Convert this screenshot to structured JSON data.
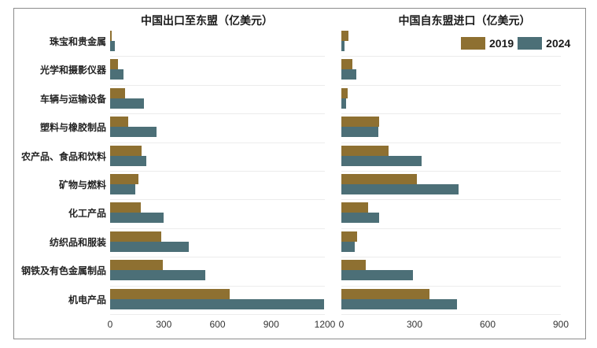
{
  "colors": {
    "y2019": "#8e7031",
    "y2024": "#4c6f77",
    "gridline": "#ececec",
    "frame_border": "#8c8c8c"
  },
  "legend": {
    "position": "top-right-of-right-chart",
    "entries": [
      {
        "label": "2019",
        "color": "#8e7031"
      },
      {
        "label": "2024",
        "color": "#4c6f77"
      }
    ]
  },
  "chart_data": [
    {
      "type": "bar",
      "orientation": "horizontal",
      "title": "中国出口至东盟（亿美元）",
      "categories": [
        "珠宝和贵金属",
        "光学和摄影仪器",
        "车辆与运输设备",
        "塑料与橡胶制品",
        "农产品、食品和饮料",
        "矿物与燃料",
        "化工产品",
        "纺织品和服装",
        "钢铁及有色金属制品",
        "机电产品"
      ],
      "series": [
        {
          "name": "2019",
          "color": "#8e7031",
          "values": [
            10,
            45,
            85,
            100,
            175,
            160,
            170,
            285,
            295,
            670
          ]
        },
        {
          "name": "2024",
          "color": "#4c6f77",
          "values": [
            25,
            75,
            190,
            260,
            200,
            140,
            300,
            440,
            530,
            1195
          ]
        }
      ],
      "xlim": [
        0,
        1200
      ],
      "xticks": [
        0,
        300,
        600,
        900,
        1200
      ],
      "grid": "horizontal-row-separators",
      "legend_shown": false
    },
    {
      "type": "bar",
      "orientation": "horizontal",
      "title": "中国自东盟进口（亿美元）",
      "categories": [
        "珠宝和贵金属",
        "光学和摄影仪器",
        "车辆与运输设备",
        "塑料与橡胶制品",
        "农产品、食品和饮料",
        "矿物与燃料",
        "化工产品",
        "纺织品和服装",
        "钢铁及有色金属制品",
        "机电产品"
      ],
      "series": [
        {
          "name": "2019",
          "color": "#8e7031",
          "values": [
            30,
            45,
            25,
            155,
            195,
            310,
            110,
            65,
            100,
            360
          ]
        },
        {
          "name": "2024",
          "color": "#4c6f77",
          "values": [
            12,
            60,
            20,
            150,
            330,
            480,
            155,
            55,
            295,
            475
          ]
        }
      ],
      "xlim": [
        0,
        900
      ],
      "xticks": [
        0,
        300,
        600,
        900
      ],
      "grid": "horizontal-row-separators",
      "legend_shown": true
    }
  ]
}
